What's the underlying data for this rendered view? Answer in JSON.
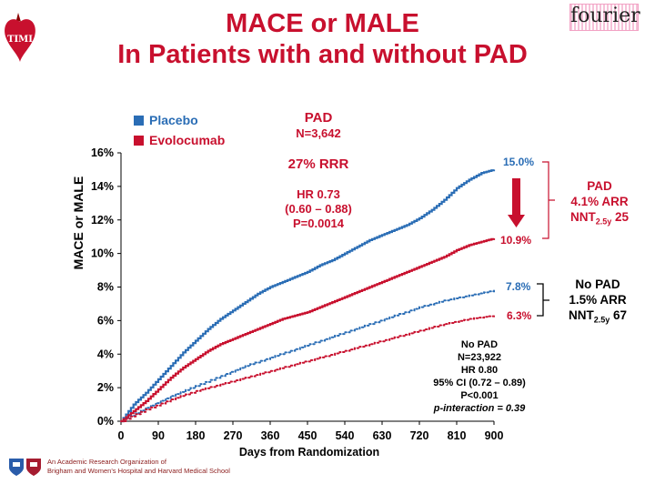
{
  "title_line1": "MACE or MALE",
  "title_line2": "In Patients with and without PAD",
  "logos": {
    "timi": "TIMI",
    "fourier": "fourier"
  },
  "legend": [
    {
      "label": "Placebo",
      "color": "#2a6db5"
    },
    {
      "label": "Evolocumab",
      "color": "#c8102e"
    }
  ],
  "pad_stats": {
    "label": "PAD",
    "n": "N=3,642",
    "rrr": "27% RRR",
    "hr": "HR 0.73",
    "ci": "(0.60 – 0.88)",
    "p": "P=0.0014"
  },
  "nopad_stats": {
    "label": "No PAD",
    "n": "N=23,922",
    "hr": "HR 0.80",
    "ci": "95% CI (0.72 – 0.89)",
    "p": "P<0.001",
    "interaction": "p-interaction = 0.39"
  },
  "pad_callout": {
    "label": "PAD",
    "arr": "4.1% ARR",
    "nnt": "NNT",
    "nnt_sub": "2.5y",
    "nnt_val": "25"
  },
  "nopad_callout": {
    "label": "No PAD",
    "arr": "1.5% ARR",
    "nnt": "NNT",
    "nnt_sub": "2.5y",
    "nnt_val": "67"
  },
  "endpoint_labels": {
    "pad_placebo": "15.0%",
    "pad_evolocumab": "10.9%",
    "nopad_placebo": "7.8%",
    "nopad_evolocumab": "6.3%"
  },
  "footer": {
    "line1": "An Academic Research Organization of",
    "line2": "Brigham and Women's Hospital and Harvard Medical School"
  },
  "chart_data": {
    "type": "line",
    "xlabel": "Days from Randomization",
    "ylabel": "MACE or MALE",
    "xlim": [
      0,
      900
    ],
    "ylim": [
      0,
      16
    ],
    "xticks": [
      0,
      90,
      180,
      270,
      360,
      450,
      540,
      630,
      720,
      810,
      900
    ],
    "yticks": [
      0,
      2,
      4,
      6,
      8,
      10,
      12,
      14,
      16
    ],
    "ytick_labels": [
      "0%",
      "2%",
      "4%",
      "6%",
      "8%",
      "10%",
      "12%",
      "14%",
      "16%"
    ],
    "series": [
      {
        "name": "Placebo",
        "group": "PAD",
        "color": "#2a6db5",
        "style": "solid",
        "x": [
          0,
          30,
          60,
          90,
          120,
          150,
          180,
          210,
          240,
          270,
          300,
          330,
          360,
          390,
          420,
          450,
          480,
          510,
          540,
          570,
          600,
          630,
          660,
          690,
          720,
          750,
          780,
          810,
          840,
          870,
          900
        ],
        "y": [
          0,
          1.0,
          1.7,
          2.5,
          3.3,
          4.1,
          4.8,
          5.5,
          6.1,
          6.6,
          7.1,
          7.6,
          8.0,
          8.3,
          8.6,
          8.9,
          9.3,
          9.6,
          10.0,
          10.4,
          10.8,
          11.1,
          11.4,
          11.7,
          12.1,
          12.6,
          13.2,
          13.9,
          14.4,
          14.8,
          15.0
        ]
      },
      {
        "name": "Evolocumab",
        "group": "PAD",
        "color": "#c8102e",
        "style": "solid",
        "x": [
          0,
          30,
          60,
          90,
          120,
          150,
          180,
          210,
          240,
          270,
          300,
          330,
          360,
          390,
          420,
          450,
          480,
          510,
          540,
          570,
          600,
          630,
          660,
          690,
          720,
          750,
          780,
          810,
          840,
          870,
          900
        ],
        "y": [
          0,
          0.6,
          1.2,
          1.9,
          2.6,
          3.2,
          3.7,
          4.2,
          4.6,
          4.9,
          5.2,
          5.5,
          5.8,
          6.1,
          6.3,
          6.5,
          6.8,
          7.1,
          7.4,
          7.7,
          8.0,
          8.3,
          8.6,
          8.9,
          9.2,
          9.5,
          9.8,
          10.2,
          10.5,
          10.7,
          10.9
        ]
      },
      {
        "name": "Placebo",
        "group": "No PAD",
        "color": "#2a6db5",
        "style": "dotted",
        "x": [
          0,
          60,
          120,
          180,
          240,
          300,
          360,
          420,
          480,
          540,
          600,
          660,
          720,
          780,
          840,
          900
        ],
        "y": [
          0,
          0.8,
          1.5,
          2.1,
          2.7,
          3.3,
          3.8,
          4.3,
          4.8,
          5.3,
          5.8,
          6.3,
          6.8,
          7.2,
          7.5,
          7.8
        ]
      },
      {
        "name": "Evolocumab",
        "group": "No PAD",
        "color": "#c8102e",
        "style": "dotted",
        "x": [
          0,
          60,
          120,
          180,
          240,
          300,
          360,
          420,
          480,
          540,
          600,
          660,
          720,
          780,
          840,
          900
        ],
        "y": [
          0,
          0.7,
          1.3,
          1.8,
          2.2,
          2.6,
          3.0,
          3.4,
          3.8,
          4.2,
          4.6,
          5.0,
          5.4,
          5.8,
          6.1,
          6.3
        ]
      }
    ]
  }
}
